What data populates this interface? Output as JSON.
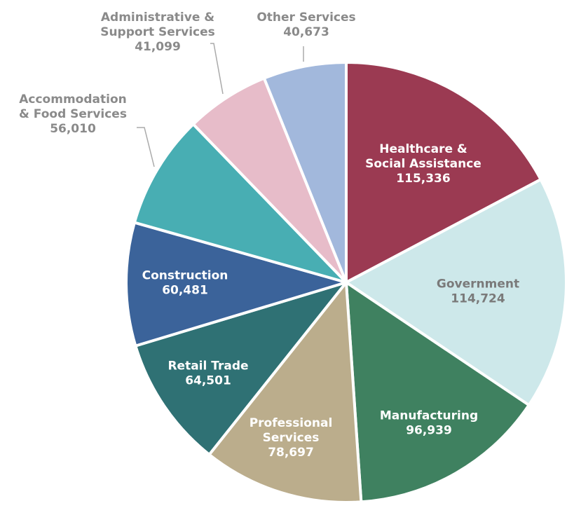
{
  "chart_data": {
    "type": "pie",
    "start_angle_deg": 0,
    "direction": "clockwise",
    "slices": [
      {
        "name": [
          "Healthcare &",
          "Social Assistance"
        ],
        "value_label": "115,336",
        "value": 115336,
        "color": "#9b3a52",
        "label_color": "#ffffff",
        "label_position": "inside"
      },
      {
        "name": [
          "Government"
        ],
        "value_label": "114,724",
        "value": 114724,
        "color": "#cde8ea",
        "label_color": "#7a7a7a",
        "label_position": "inside"
      },
      {
        "name": [
          "Manufacturing"
        ],
        "value_label": "96,939",
        "value": 96939,
        "color": "#3f8160",
        "label_color": "#ffffff",
        "label_position": "inside"
      },
      {
        "name": [
          "Professional",
          "Services"
        ],
        "value_label": "78,697",
        "value": 78697,
        "color": "#bbad8c",
        "label_color": "#ffffff",
        "label_position": "inside"
      },
      {
        "name": [
          "Retail Trade"
        ],
        "value_label": "64,501",
        "value": 64501,
        "color": "#2f7174",
        "label_color": "#ffffff",
        "label_position": "inside"
      },
      {
        "name": [
          "Construction"
        ],
        "value_label": "60,481",
        "value": 60481,
        "color": "#3b639a",
        "label_color": "#ffffff",
        "label_position": "inside"
      },
      {
        "name": [
          "Accommodation",
          "& Food Services"
        ],
        "value_label": "56,010",
        "value": 56010,
        "color": "#48aeb3",
        "label_color": "#8a8a8a",
        "label_position": "outside"
      },
      {
        "name": [
          "Administrative &",
          "Support Services"
        ],
        "value_label": "41,099",
        "value": 41099,
        "color": "#e7bcc9",
        "label_color": "#8a8a8a",
        "label_position": "outside"
      },
      {
        "name": [
          "Other Services"
        ],
        "value_label": "40,673",
        "value": 40673,
        "color": "#a2b8dc",
        "label_color": "#8a8a8a",
        "label_position": "outside"
      }
    ]
  }
}
